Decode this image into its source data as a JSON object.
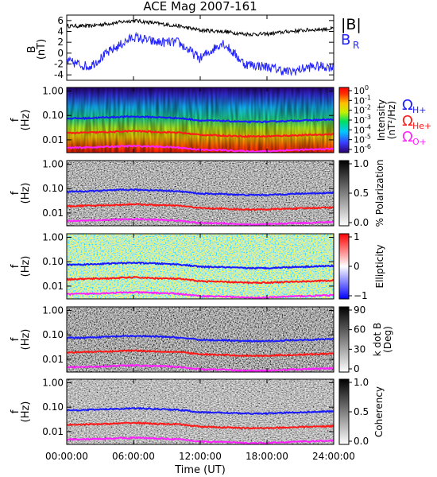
{
  "title": "ACE Mag 2007-161",
  "time_axis": {
    "label": "Time (UT)",
    "ticks": [
      "00:00:00",
      "06:00:00",
      "12:00:00",
      "18:00:00",
      "24:00:00"
    ],
    "tick_hours": [
      0,
      6,
      12,
      18,
      24
    ],
    "range_hours": [
      0,
      24
    ]
  },
  "legend": {
    "b_total": {
      "label": "|B|",
      "color": "#000000"
    },
    "b_radial": {
      "label": "B",
      "sub": "R",
      "color": "#2222ff"
    },
    "gyro": [
      {
        "label": "Ω",
        "sub": "H+",
        "color": "#1a1aff"
      },
      {
        "label": "Ω",
        "sub": "He+",
        "color": "#ff1a1a"
      },
      {
        "label": "Ω",
        "sub": "O+",
        "color": "#ff22ff"
      }
    ]
  },
  "chart_data": [
    {
      "type": "line",
      "name": "field",
      "ylabel": "B",
      "yunit": "(nT)",
      "ylim": [
        -5,
        7
      ],
      "yticks": [
        "6",
        "4",
        "2",
        "0",
        "-2",
        "-4"
      ],
      "ytick_values": [
        6,
        4,
        2,
        0,
        -2,
        -4
      ],
      "x": [
        0,
        2,
        4,
        6,
        8,
        10,
        12,
        14,
        16,
        18,
        20,
        22,
        24
      ],
      "series": [
        {
          "name": "|B|",
          "values": [
            5.0,
            5.0,
            5.5,
            6.0,
            5.5,
            5.0,
            4.2,
            4.0,
            3.5,
            3.5,
            4.0,
            4.3,
            4.5
          ]
        },
        {
          "name": "BR",
          "values": [
            -1.5,
            -2.5,
            0.5,
            3.0,
            2.0,
            2.0,
            -1.0,
            2.0,
            -2.0,
            -2.5,
            -3.5,
            -2.5,
            -2.5
          ]
        }
      ]
    },
    {
      "type": "heatmap",
      "name": "intensity",
      "ylabel": "f",
      "yunit": "(Hz)",
      "yscale": "log",
      "ylim": [
        0.003,
        1.4
      ],
      "yticks": [
        "1.00",
        "0.10",
        "0.01"
      ],
      "ytick_values": [
        1,
        0.1,
        0.01
      ],
      "colorbar": {
        "label": "Intensity",
        "unit": "(nT²/Hz)",
        "scale": "rainbow",
        "ticks": [
          {
            "base": "10",
            "exp": "0"
          },
          {
            "base": "10",
            "exp": "-1"
          },
          {
            "base": "10",
            "exp": "-2"
          },
          {
            "base": "10",
            "exp": "-3"
          },
          {
            "base": "10",
            "exp": "-4"
          },
          {
            "base": "10",
            "exp": "-5"
          },
          {
            "base": "10",
            "exp": "-6"
          }
        ]
      }
    },
    {
      "type": "heatmap",
      "name": "polarization",
      "ylabel": "f",
      "yunit": "(Hz)",
      "yscale": "log",
      "ylim": [
        0.003,
        1.4
      ],
      "yticks": [
        "1.00",
        "0.10",
        "0.01"
      ],
      "ytick_values": [
        1,
        0.1,
        0.01
      ],
      "colorbar": {
        "label": "% Polarization",
        "scale": "gray",
        "ticks": [
          "1.0",
          "0.5",
          "0.0"
        ]
      }
    },
    {
      "type": "heatmap",
      "name": "ellipticity",
      "ylabel": "f",
      "yunit": "(Hz)",
      "yscale": "log",
      "ylim": [
        0.003,
        1.4
      ],
      "yticks": [
        "1.00",
        "0.10",
        "0.01"
      ],
      "ytick_values": [
        1,
        0.1,
        0.01
      ],
      "colorbar": {
        "label": "Ellipticity",
        "scale": "bwr",
        "ticks": [
          "1",
          "0",
          "−1"
        ]
      }
    },
    {
      "type": "heatmap",
      "name": "kdotb",
      "ylabel": "f",
      "yunit": "(Hz)",
      "yscale": "log",
      "ylim": [
        0.003,
        1.4
      ],
      "yticks": [
        "1.00",
        "0.10",
        "0.01"
      ],
      "ytick_values": [
        1,
        0.1,
        0.01
      ],
      "colorbar": {
        "label": "k dot B",
        "unit": "(Deg)",
        "scale": "gray",
        "ticks": [
          "90",
          "60",
          "30",
          "0"
        ]
      }
    },
    {
      "type": "heatmap",
      "name": "coherency",
      "ylabel": "f",
      "yunit": "(Hz)",
      "yscale": "log",
      "ylim": [
        0.003,
        1.4
      ],
      "yticks": [
        "1.00",
        "0.10",
        "0.01"
      ],
      "ytick_values": [
        1,
        0.1,
        0.01
      ],
      "colorbar": {
        "label": "Coherency",
        "scale": "gray",
        "ticks": [
          "1.0",
          "0.5",
          "0.0"
        ]
      }
    }
  ],
  "gyrofrequency_hz": {
    "x": [
      0,
      2,
      4,
      6,
      8,
      10,
      12,
      14,
      16,
      18,
      20,
      22,
      24
    ],
    "H+": [
      0.075,
      0.078,
      0.085,
      0.09,
      0.085,
      0.078,
      0.062,
      0.06,
      0.055,
      0.055,
      0.06,
      0.064,
      0.068
    ],
    "He+": [
      0.019,
      0.02,
      0.021,
      0.023,
      0.021,
      0.02,
      0.016,
      0.015,
      0.014,
      0.014,
      0.015,
      0.016,
      0.017
    ],
    "O+": [
      0.0047,
      0.0049,
      0.0053,
      0.0056,
      0.0053,
      0.0049,
      0.0039,
      0.0038,
      0.0034,
      0.0034,
      0.0038,
      0.004,
      0.0043
    ]
  }
}
